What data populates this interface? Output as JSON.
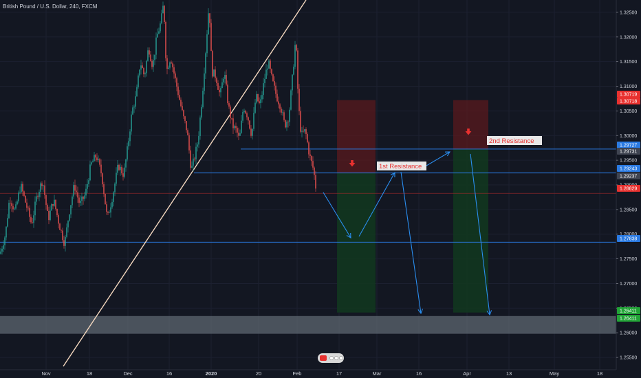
{
  "chart_data": {
    "type": "candlestick",
    "title": "British Pound / U.S. Dollar, 240, FXCM",
    "x_ticks": [
      "Nov",
      "18",
      "Dec",
      "16",
      "2020",
      "20",
      "Feb",
      "17",
      "Mar",
      "16",
      "Apr",
      "13",
      "May",
      "18"
    ],
    "x_ticks_bold": [
      "2020"
    ],
    "y_ticks": [
      "1.32500",
      "1.32000",
      "1.31500",
      "1.31000",
      "1.30500",
      "1.30000",
      "1.29500",
      "1.29000",
      "1.28500",
      "1.28000",
      "1.27500",
      "1.27000",
      "1.26500",
      "1.26000",
      "1.25500"
    ],
    "ylim": [
      1.2525,
      1.3275
    ],
    "price_badges": [
      {
        "value": "1.30719",
        "color": "#e8312f"
      },
      {
        "value": "1.30718",
        "color": "#e8312f"
      },
      {
        "value": "1.29727",
        "color": "#2a7ae2"
      },
      {
        "value": "1.29731",
        "color": "#3f4451"
      },
      {
        "value": "1.29243",
        "color": "#2a7ae2"
      },
      {
        "value": "1.29237",
        "color": "#3f4451"
      },
      {
        "value": "1.28829",
        "color": "#e8312f"
      },
      {
        "value": "1.27838",
        "color": "#2a7ae2"
      },
      {
        "value": "1.26411",
        "color": "#21a336"
      },
      {
        "value": "1.26411",
        "color": "#21a336"
      }
    ],
    "horizontal_levels": [
      1.29727,
      1.29243,
      1.28829,
      1.27838
    ],
    "support_zone": [
      1.2598,
      1.2634
    ],
    "annotations": [
      {
        "label": "1st Resistance"
      },
      {
        "label": "2nd Resistance"
      }
    ],
    "positions": [
      {
        "entry": 1.29237,
        "stop": 1.30719,
        "target": 1.26411
      },
      {
        "entry": 1.29731,
        "stop": 1.30718,
        "target": 1.26411
      }
    ],
    "price_path": [
      [
        0,
        1.276
      ],
      [
        8,
        1.28
      ],
      [
        14,
        1.2875
      ],
      [
        22,
        1.2845
      ],
      [
        30,
        1.29
      ],
      [
        38,
        1.286
      ],
      [
        46,
        1.282
      ],
      [
        54,
        1.288
      ],
      [
        62,
        1.291
      ],
      [
        70,
        1.283
      ],
      [
        78,
        1.287
      ],
      [
        86,
        1.282
      ],
      [
        94,
        1.278
      ],
      [
        100,
        1.284
      ],
      [
        108,
        1.29
      ],
      [
        116,
        1.286
      ],
      [
        124,
        1.288
      ],
      [
        132,
        1.294
      ],
      [
        140,
        1.296
      ],
      [
        148,
        1.292
      ],
      [
        156,
        1.283
      ],
      [
        164,
        1.288
      ],
      [
        172,
        1.294
      ],
      [
        180,
        1.292
      ],
      [
        186,
        1.298
      ],
      [
        192,
        1.305
      ],
      [
        198,
        1.308
      ],
      [
        204,
        1.315
      ],
      [
        210,
        1.312
      ],
      [
        216,
        1.318
      ],
      [
        222,
        1.314
      ],
      [
        228,
        1.32
      ],
      [
        234,
        1.323
      ],
      [
        238,
        1.327
      ],
      [
        242,
        1.313
      ],
      [
        248,
        1.316
      ],
      [
        254,
        1.312
      ],
      [
        260,
        1.308
      ],
      [
        266,
        1.304
      ],
      [
        272,
        1.301
      ],
      [
        278,
        1.293
      ],
      [
        282,
        1.295
      ],
      [
        288,
        1.299
      ],
      [
        294,
        1.308
      ],
      [
        300,
        1.319
      ],
      [
        304,
        1.327
      ],
      [
        308,
        1.313
      ],
      [
        314,
        1.312
      ],
      [
        320,
        1.308
      ],
      [
        326,
        1.313
      ],
      [
        332,
        1.306
      ],
      [
        338,
        1.302
      ],
      [
        344,
        1.301
      ],
      [
        348,
        1.299
      ],
      [
        354,
        1.306
      ],
      [
        360,
        1.304
      ],
      [
        366,
        1.3
      ],
      [
        372,
        1.308
      ],
      [
        378,
        1.306
      ],
      [
        384,
        1.311
      ],
      [
        390,
        1.315
      ],
      [
        396,
        1.311
      ],
      [
        402,
        1.308
      ],
      [
        408,
        1.306
      ],
      [
        414,
        1.302
      ],
      [
        420,
        1.304
      ],
      [
        426,
        1.313
      ],
      [
        430,
        1.32
      ],
      [
        434,
        1.306
      ],
      [
        438,
        1.3
      ],
      [
        444,
        1.301
      ],
      [
        450,
        1.296
      ],
      [
        456,
        1.293
      ],
      [
        460,
        1.2885
      ]
    ]
  }
}
